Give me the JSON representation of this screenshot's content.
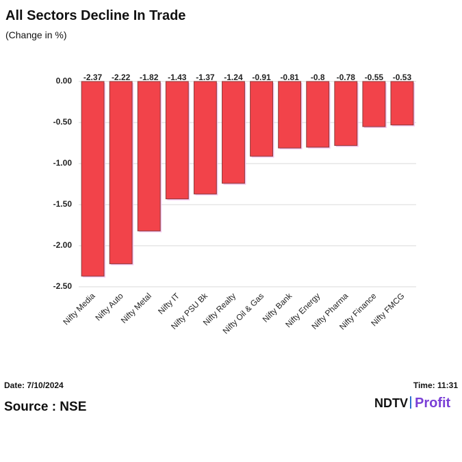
{
  "chart_data": {
    "type": "bar",
    "title": "All Sectors Decline In Trade",
    "subtitle": "(Change in %)",
    "categories": [
      "Nifty Media",
      "Nifty Auto",
      "Nifty Metal",
      "Nifty IT",
      "Nifty PSU Bk",
      "Nifty Realty",
      "Nifty Oil & Gas",
      "Nifty Bank",
      "Nifty Energy",
      "Nifty Pharma",
      "Nifty Finance",
      "Nifty FMCG"
    ],
    "values": [
      -2.37,
      -2.22,
      -1.82,
      -1.43,
      -1.37,
      -1.24,
      -0.91,
      -0.81,
      -0.8,
      -0.78,
      -0.55,
      -0.53
    ],
    "color": "#f2434a",
    "ylim": [
      -2.5,
      0
    ],
    "yticks": [
      {
        "value": 0,
        "label": "0.00"
      },
      {
        "value": -0.5,
        "label": "-0.50"
      },
      {
        "value": -1,
        "label": "-1.00"
      },
      {
        "value": -1.5,
        "label": "-1.50"
      },
      {
        "value": -2,
        "label": "-2.00"
      },
      {
        "value": -2.5,
        "label": "-2.50"
      }
    ],
    "grid": true
  },
  "footer": {
    "date": "Date: 7/10/2024",
    "time": "Time: 11:31",
    "source": "Source : NSE",
    "logo_left": "NDTV",
    "logo_right": "Profit"
  }
}
